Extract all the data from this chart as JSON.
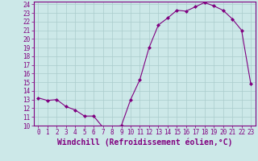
{
  "x": [
    0,
    1,
    2,
    3,
    4,
    5,
    6,
    7,
    8,
    9,
    10,
    11,
    12,
    13,
    14,
    15,
    16,
    17,
    18,
    19,
    20,
    21,
    22,
    23
  ],
  "y": [
    13.2,
    12.9,
    13.0,
    12.2,
    11.8,
    11.1,
    11.1,
    9.8,
    9.8,
    10.0,
    13.0,
    15.3,
    19.0,
    21.6,
    22.4,
    23.3,
    23.2,
    23.7,
    24.2,
    23.8,
    23.3,
    22.3,
    21.0,
    14.8
  ],
  "line_color": "#800080",
  "marker": "D",
  "markersize": 2,
  "bg_color": "#cce8e8",
  "grid_color": "#aacccc",
  "xlabel": "Windchill (Refroidissement éolien,°C)",
  "ylim": [
    10,
    24
  ],
  "xlim": [
    -0.5,
    23.5
  ],
  "yticks": [
    10,
    11,
    12,
    13,
    14,
    15,
    16,
    17,
    18,
    19,
    20,
    21,
    22,
    23,
    24
  ],
  "xticks": [
    0,
    1,
    2,
    3,
    4,
    5,
    6,
    7,
    8,
    9,
    10,
    11,
    12,
    13,
    14,
    15,
    16,
    17,
    18,
    19,
    20,
    21,
    22,
    23
  ],
  "tick_fontsize": 5.5,
  "xlabel_fontsize": 7,
  "spine_color": "#800080",
  "tick_color": "#800080"
}
